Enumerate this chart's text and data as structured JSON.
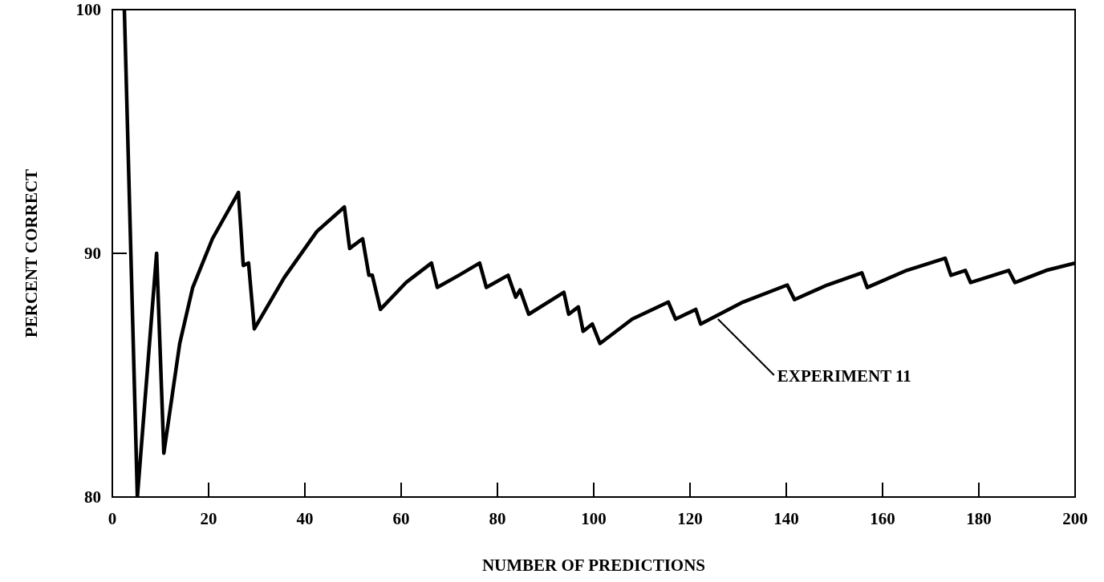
{
  "chart_data": {
    "type": "line",
    "xlabel": "NUMBER OF PREDICTIONS",
    "ylabel": "PERCENT CORRECT",
    "xlim": [
      0,
      200
    ],
    "ylim": [
      80,
      100
    ],
    "xticks": [
      0,
      20,
      40,
      60,
      80,
      100,
      120,
      140,
      160,
      180,
      200
    ],
    "yticks": [
      80,
      90,
      100
    ],
    "grid": false,
    "marker": "none",
    "line_style": "solid",
    "series": [
      {
        "color": "#000000",
        "x": [
          2.5,
          5.2,
          9.2,
          10.7,
          14,
          16.7,
          20.8,
          26.2,
          27.2,
          28.3,
          29.5,
          35.7,
          42.5,
          48.2,
          49.3,
          52,
          53.3,
          54,
          55.7,
          61,
          66.3,
          67.5,
          72,
          76.3,
          77.7,
          82.2,
          83.8,
          84.7,
          86.5,
          93.8,
          94.8,
          96.8,
          97.8,
          99.7,
          101.3,
          108,
          115.5,
          117,
          121.2,
          122.2,
          131,
          140.2,
          141.7,
          148.5,
          155.7,
          156.8,
          165,
          173,
          174.2,
          177.2,
          178.3,
          186.2,
          187.5,
          194,
          200
        ],
        "values": [
          100,
          80,
          90,
          81.8,
          86.3,
          88.6,
          90.6,
          92.5,
          89.5,
          89.6,
          86.9,
          89.0,
          90.9,
          91.9,
          90.2,
          90.6,
          89.1,
          89.1,
          87.7,
          88.8,
          89.6,
          88.6,
          89.1,
          89.6,
          88.6,
          89.1,
          88.2,
          88.5,
          87.5,
          88.4,
          87.5,
          87.8,
          86.8,
          87.1,
          86.3,
          87.3,
          88.0,
          87.3,
          87.7,
          87.1,
          88.0,
          88.7,
          88.1,
          88.7,
          89.2,
          88.6,
          89.3,
          89.8,
          89.1,
          89.3,
          88.8,
          89.3,
          88.8,
          89.3,
          89.6
        ]
      }
    ],
    "annotations": [
      {
        "text": "EXPERIMENT 11",
        "x": 125.8,
        "y": 87.3
      }
    ]
  }
}
